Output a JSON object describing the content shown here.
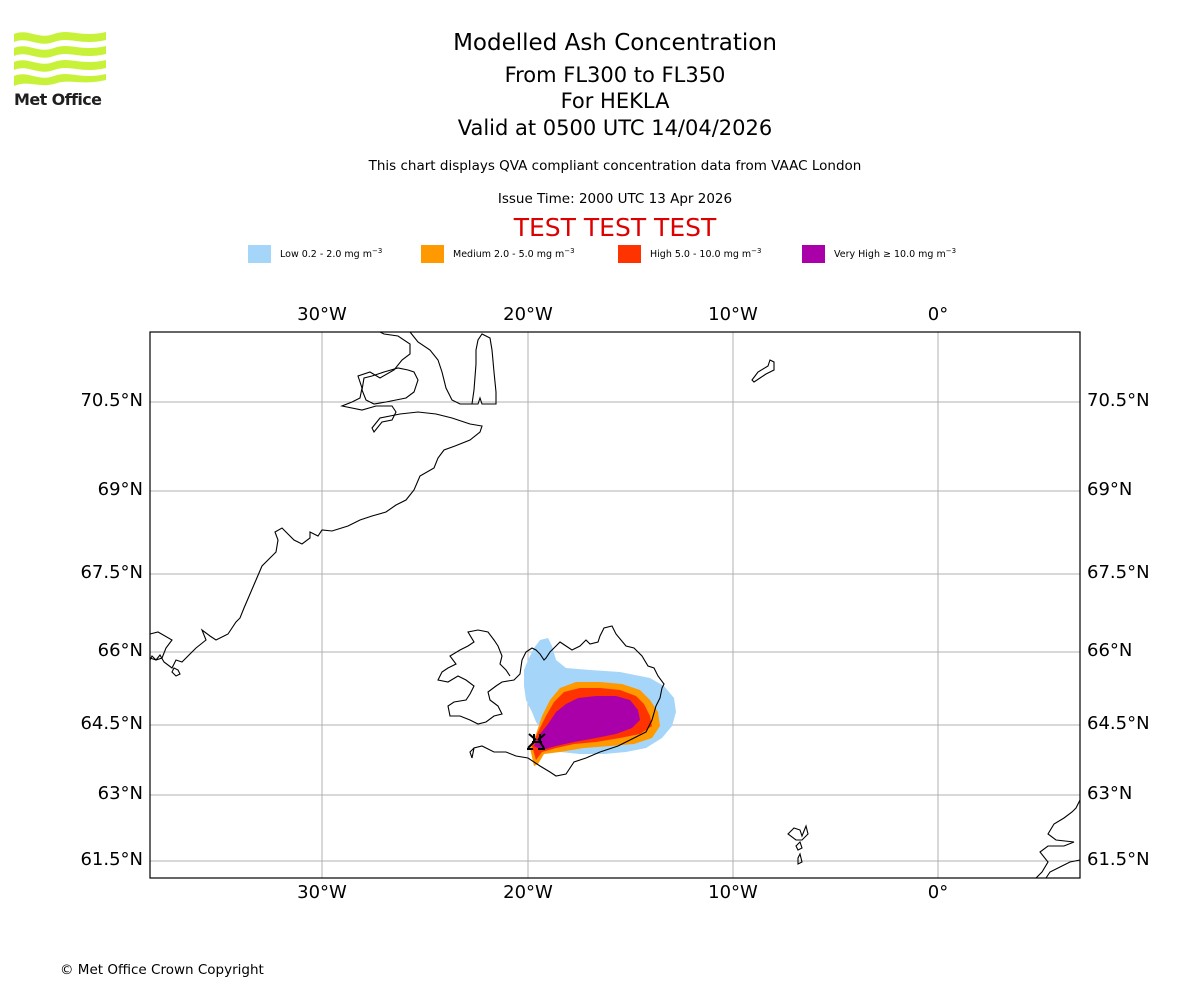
{
  "logo": {
    "text": "Met Office",
    "color": "#c8f23a"
  },
  "header": {
    "title": "Modelled Ash Concentration",
    "flight_levels": "From FL300 to FL350",
    "volcano_line": "For HEKLA",
    "valid_time": "Valid at 0500 UTC 14/04/2026",
    "description": "This chart displays QVA compliant concentration data from VAAC London",
    "issue_time": "Issue Time: 2000 UTC 13 Apr 2026",
    "test_banner": "TEST TEST TEST",
    "test_banner_color": "#dd0000"
  },
  "legend": [
    {
      "name": "Low",
      "label": "Low 0.2 - 2.0 mg m",
      "unit_exp": "−3",
      "color": "#a6d5fa"
    },
    {
      "name": "Medium",
      "label": "Medium 2.0 - 5.0 mg m",
      "unit_exp": "−3",
      "color": "#ff9900"
    },
    {
      "name": "High",
      "label": "High 5.0 - 10.0 mg m",
      "unit_exp": "−3",
      "color": "#ff3300"
    },
    {
      "name": "Very High",
      "label": "Very High  ≥  10.0 mg m",
      "unit_exp": "−3",
      "color": "#aa00aa"
    }
  ],
  "map": {
    "volcano": "HEKLA",
    "volcano_symbol": "volcano-icon",
    "lon_range": [
      -38.3,
      6.8
    ],
    "lat_range": [
      61.2,
      71.7
    ],
    "lon_ticks": [
      {
        "value": -30,
        "label": "30°W"
      },
      {
        "value": -20,
        "label": "20°W"
      },
      {
        "value": -10,
        "label": "10°W"
      },
      {
        "value": 0,
        "label": "0°"
      }
    ],
    "lat_ticks": [
      {
        "value": 70.5,
        "label": "70.5°N"
      },
      {
        "value": 69,
        "label": "69°N"
      },
      {
        "value": 67.5,
        "label": "67.5°N"
      },
      {
        "value": 66,
        "label": "66°N"
      },
      {
        "value": 64.5,
        "label": "64.5°N"
      },
      {
        "value": 63,
        "label": "63°N"
      },
      {
        "value": 61.5,
        "label": "61.5°N"
      }
    ],
    "gridlines": true
  },
  "footer": {
    "copyright": "© Met Office Crown Copyright"
  }
}
